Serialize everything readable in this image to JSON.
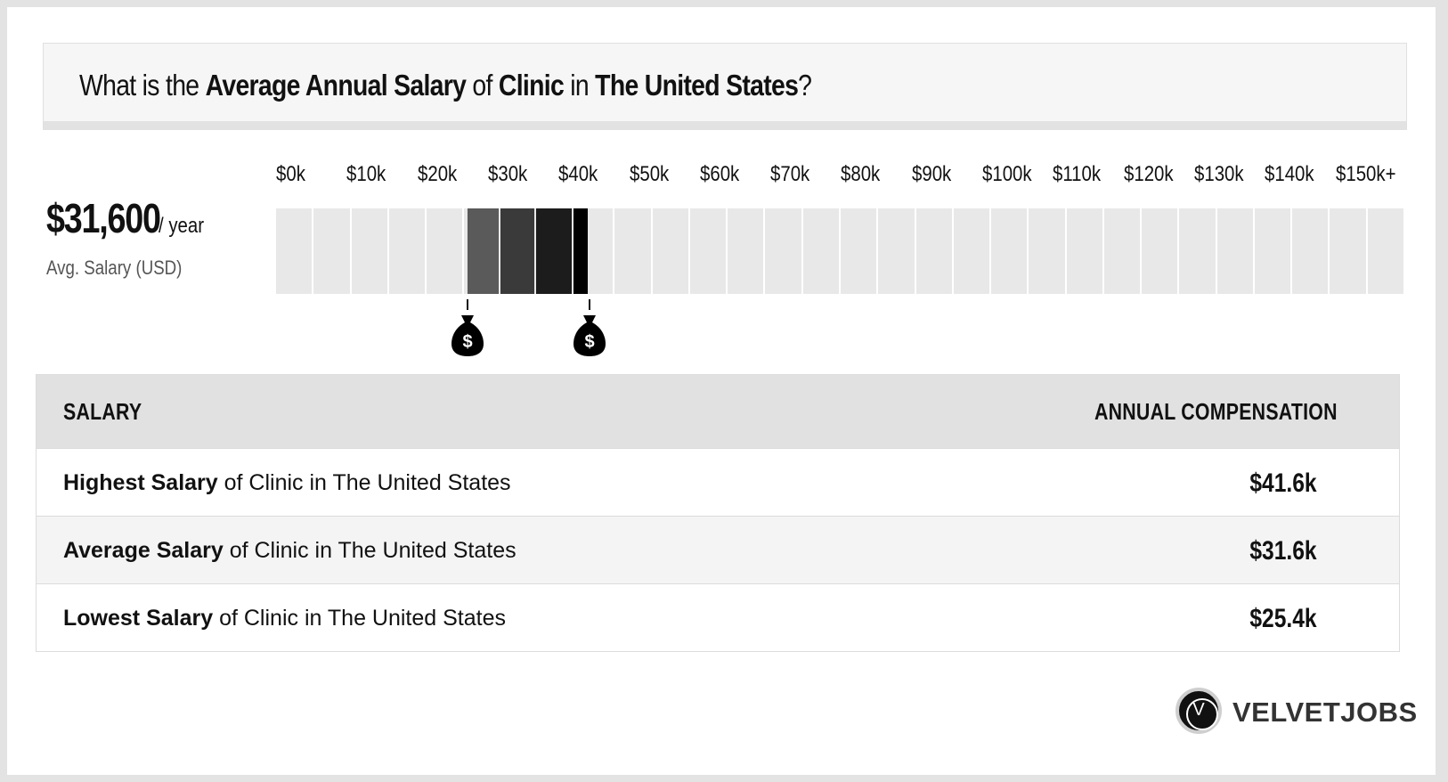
{
  "header": {
    "prefix": "What is the ",
    "metric": "Average Annual Salary",
    "of": " of ",
    "job": "Clinic",
    "in": " in ",
    "location": "The United States",
    "suffix": "?"
  },
  "summary": {
    "avg_value": "$31,600",
    "unit": "/ year",
    "label": "Avg. Salary (USD)"
  },
  "chart_data": {
    "type": "bar",
    "orientation": "horizontal-range",
    "tick_labels": [
      "$0k",
      "$10k",
      "$20k",
      "$30k",
      "$40k",
      "$50k",
      "$60k",
      "$70k",
      "$80k",
      "$90k",
      "$100k",
      "$110k",
      "$120k",
      "$130k",
      "$140k",
      "$150k+"
    ],
    "x_min": 0,
    "x_max": 150000,
    "segments": 30,
    "low": 25400,
    "average": 31600,
    "high": 41600,
    "fill_colors": [
      "#5a5a5a",
      "#3a3a3a",
      "#1c1c1c",
      "#000000"
    ],
    "track_color": "#e8e8e8",
    "marker_icon": "money-bag-icon"
  },
  "table": {
    "headers": [
      "SALARY",
      "ANNUAL COMPENSATION"
    ],
    "rows": [
      {
        "bold": "Highest Salary",
        "rest": " of Clinic in The United States",
        "value": "$41.6k"
      },
      {
        "bold": "Average Salary",
        "rest": " of Clinic in The United States",
        "value": "$31.6k"
      },
      {
        "bold": "Lowest Salary",
        "rest": " of Clinic in The United States",
        "value": "$25.4k"
      }
    ]
  },
  "brand": {
    "logo_letter": "V",
    "name": "VELVETJOBS"
  }
}
